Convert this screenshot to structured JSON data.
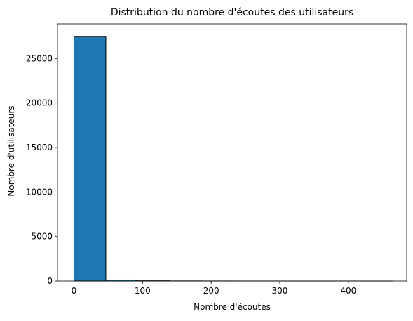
{
  "chart_data": {
    "type": "bar",
    "subtype": "histogram",
    "title": "Distribution du nombre d'écoutes des utilisateurs",
    "xlabel": "Nombre d'écoutes",
    "ylabel": "Nombre d'utilisateurs",
    "xlim": [
      -24,
      485
    ],
    "ylim": [
      0,
      28900
    ],
    "x_ticks": [
      0,
      100,
      200,
      300,
      400
    ],
    "x_tick_labels": [
      "0",
      "100",
      "200",
      "300",
      "400"
    ],
    "y_ticks": [
      0,
      5000,
      10000,
      15000,
      20000,
      25000
    ],
    "y_tick_labels": [
      "0",
      "5000",
      "10000",
      "15000",
      "20000",
      "25000"
    ],
    "bins": [
      {
        "x0": 0,
        "x1": 46.5,
        "count": 27500
      },
      {
        "x0": 46.5,
        "x1": 93,
        "count": 120
      },
      {
        "x0": 93,
        "x1": 139.5,
        "count": 25
      },
      {
        "x0": 139.5,
        "x1": 186,
        "count": 10
      },
      {
        "x0": 186,
        "x1": 232.5,
        "count": 5
      },
      {
        "x0": 232.5,
        "x1": 279,
        "count": 3
      },
      {
        "x0": 279,
        "x1": 325.5,
        "count": 2
      },
      {
        "x0": 325.5,
        "x1": 372,
        "count": 1
      },
      {
        "x0": 372,
        "x1": 418.5,
        "count": 1
      },
      {
        "x0": 418.5,
        "x1": 465,
        "count": 1
      }
    ],
    "bar_color": "#1f77b4",
    "edge_color": "#000000",
    "grid": false,
    "legend": "none"
  }
}
